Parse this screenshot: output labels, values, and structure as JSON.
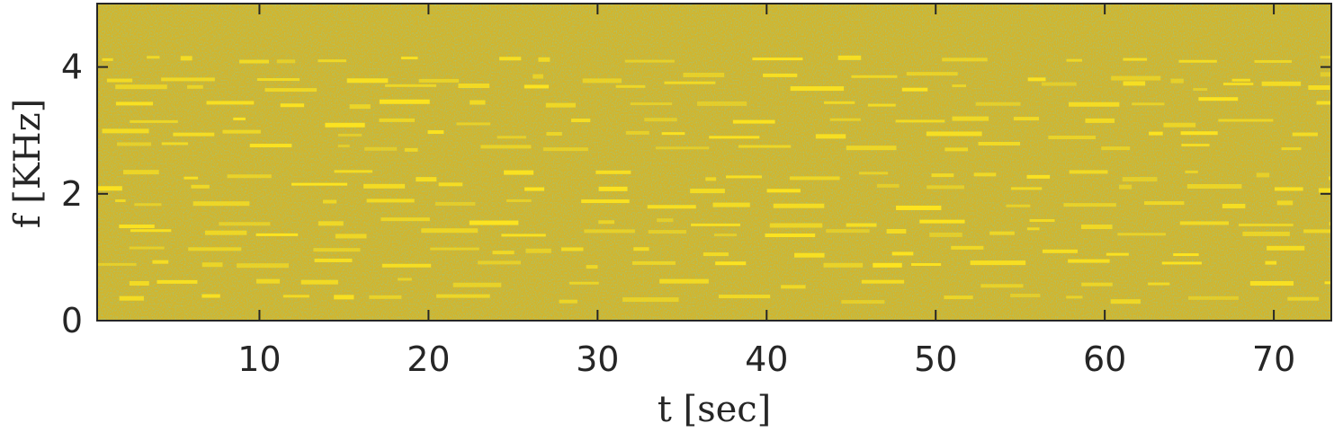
{
  "chart_data": {
    "type": "heatmap",
    "title": "",
    "xlabel": "t [sec]",
    "ylabel": "f [KHz]",
    "xlim": [
      0.4,
      73.4
    ],
    "ylim": [
      0,
      5
    ],
    "xticks": [
      10,
      20,
      30,
      40,
      50,
      60,
      70
    ],
    "xtick_labels": [
      "10",
      "20",
      "30",
      "40",
      "50",
      "60",
      "70"
    ],
    "yticks": [
      0,
      2,
      4
    ],
    "ytick_labels": [
      "0",
      "2",
      "4"
    ],
    "colors": {
      "background": "#d4b42a",
      "noise_green": "#7fb451",
      "noise_teal": "#2fa88c",
      "highlight": "#ffe61e",
      "axis": "#262626"
    },
    "grid": false,
    "legend": "none",
    "harmonic_bands_khz": [
      0.35,
      0.6,
      0.9,
      1.1,
      1.4,
      1.55,
      1.85,
      2.1,
      2.3,
      2.75,
      2.95,
      3.15,
      3.45,
      3.7,
      3.85,
      4.1
    ]
  }
}
